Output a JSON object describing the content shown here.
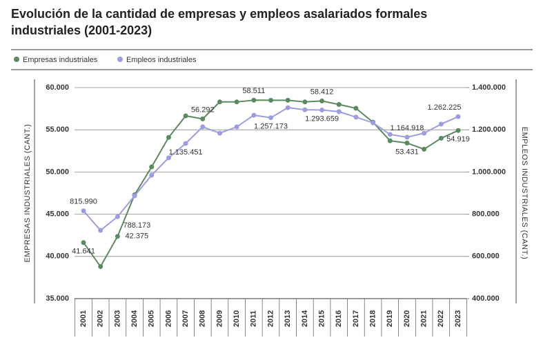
{
  "chart_data": {
    "type": "line",
    "title": "Evolución de la cantidad de empresas y empleos asalariados formales industriales (2001-2023)",
    "categories": [
      "2001",
      "2002",
      "2003",
      "2004",
      "2005",
      "2006",
      "2007",
      "2008",
      "2009",
      "2010",
      "2011",
      "2012",
      "2013",
      "2014",
      "2015",
      "2016",
      "2017",
      "2018",
      "2019",
      "2020",
      "2021",
      "2022",
      "2023"
    ],
    "series": [
      {
        "name": "Empresas industriales",
        "color": "#5a8a5f",
        "axis": "y",
        "values": [
          41641,
          38800,
          42375,
          47300,
          50600,
          54100,
          56650,
          56292,
          58300,
          58300,
          58511,
          58500,
          58500,
          58300,
          58412,
          58000,
          57550,
          55900,
          53700,
          53431,
          52700,
          54000,
          54919
        ],
        "value_labels": [
          "41.641",
          null,
          "42.375",
          null,
          null,
          null,
          null,
          "56.292",
          null,
          null,
          "58.511",
          null,
          null,
          null,
          "58.412",
          null,
          null,
          null,
          null,
          "53.431",
          null,
          null,
          "54.919"
        ]
      },
      {
        "name": "Empleos industriales",
        "color": "#9c9ce0",
        "axis": "y2",
        "values": [
          815990,
          723500,
          788173,
          887000,
          985000,
          1067000,
          1135451,
          1214000,
          1184000,
          1214000,
          1269000,
          1257173,
          1305000,
          1295000,
          1293659,
          1286000,
          1260000,
          1233000,
          1178000,
          1164918,
          1184000,
          1227000,
          1262225
        ],
        "value_labels": [
          "815.990",
          null,
          "788.173",
          null,
          null,
          null,
          "1.135.451",
          null,
          null,
          null,
          null,
          "1.257.173",
          null,
          null,
          "1.293.659",
          null,
          null,
          null,
          null,
          "1.164.918",
          null,
          null,
          "1.262.225"
        ]
      }
    ],
    "ylabel": "EMPRESAS INDUSTRIALES (CANT.)",
    "y2label": "EMPLEOS INDUSTRIALES (CANT.)",
    "ylim": [
      35000,
      60000
    ],
    "yticks": [
      {
        "value": 35000,
        "label": "35.000"
      },
      {
        "value": 40000,
        "label": "40.000"
      },
      {
        "value": 45000,
        "label": "45.000"
      },
      {
        "value": 50000,
        "label": "50.000"
      },
      {
        "value": 55000,
        "label": "55.000"
      },
      {
        "value": 60000,
        "label": "60.000"
      }
    ],
    "y2lim": [
      400000,
      1400000
    ],
    "y2ticks": [
      {
        "value": 400000,
        "label": "400.000"
      },
      {
        "value": 600000,
        "label": "600.000"
      },
      {
        "value": 800000,
        "label": "800.000"
      },
      {
        "value": 1000000,
        "label": "1.000.000"
      },
      {
        "value": 1200000,
        "label": "1.200.000"
      },
      {
        "value": 1400000,
        "label": "1.400.000"
      }
    ],
    "grid": true,
    "legend": "top-left"
  }
}
